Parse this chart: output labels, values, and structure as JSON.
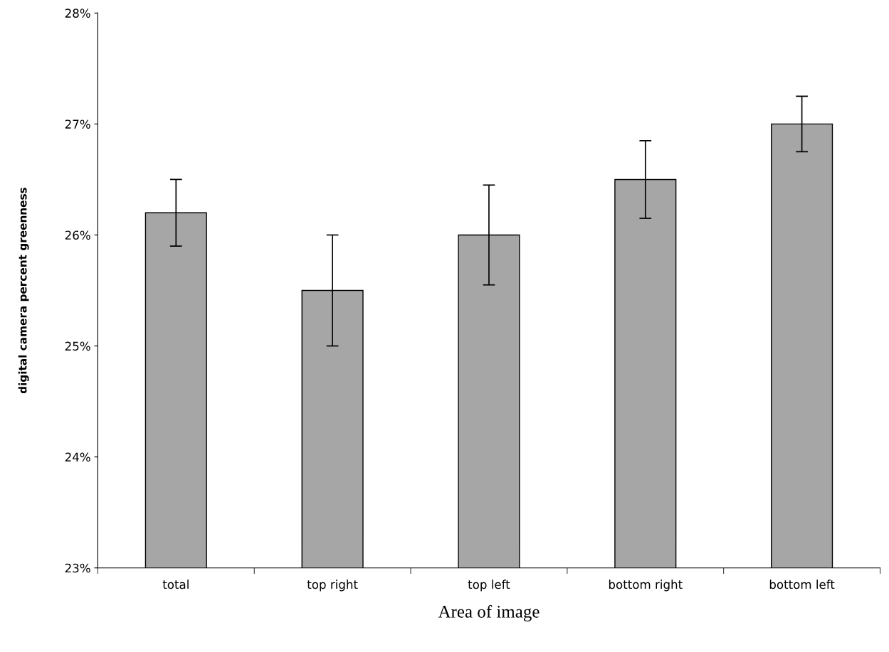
{
  "chart_data": {
    "type": "bar",
    "xlabel": "Area of image",
    "ylabel": "digital camera percent greenness",
    "categories": [
      "total",
      "top right",
      "top left",
      "bottom right",
      "bottom left"
    ],
    "values": [
      26.2,
      25.5,
      26.0,
      26.5,
      27.0
    ],
    "errors": [
      0.3,
      0.5,
      0.45,
      0.35,
      0.25
    ],
    "color": "#a6a6a6",
    "ylim": [
      23,
      28
    ],
    "yticks": [
      {
        "value": 23,
        "label": "23%"
      },
      {
        "value": 24,
        "label": "24%"
      },
      {
        "value": 25,
        "label": "25%"
      },
      {
        "value": 26,
        "label": "26%"
      },
      {
        "value": 27,
        "label": "27%"
      },
      {
        "value": 28,
        "label": "28%"
      }
    ],
    "grid": false
  }
}
